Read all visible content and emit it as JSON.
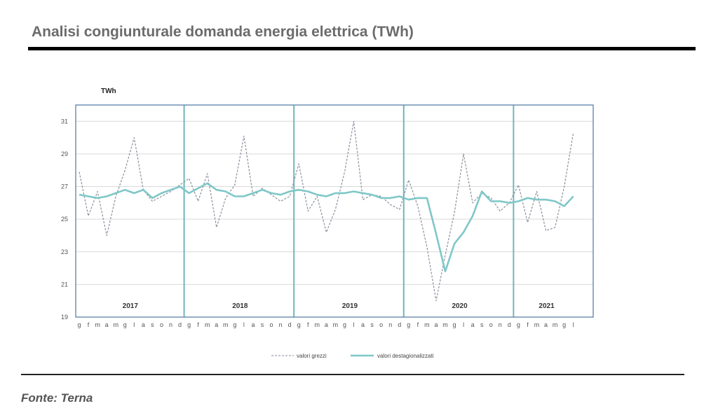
{
  "page": {
    "title": "Analisi congiunturale domanda energia elettrica (TWh)",
    "source": "Fonte: Terna"
  },
  "colors": {
    "raw": "#8a8f9c",
    "seasonal": "#7fc7c8",
    "frame": "#5b7fa6",
    "grid": "#d9d9d9",
    "divider": "#6fb7bb"
  },
  "chart_data": {
    "type": "line",
    "y_unit": "TWh",
    "ylim": [
      19,
      32
    ],
    "yticks": [
      19,
      21,
      23,
      25,
      27,
      29,
      31
    ],
    "grid": true,
    "legend_position": "bottom",
    "month_labels": [
      "g",
      "f",
      "m",
      "a",
      "m",
      "g",
      "l",
      "a",
      "s",
      "o",
      "n",
      "d",
      "g",
      "f",
      "m",
      "a",
      "m",
      "g",
      "l",
      "a",
      "s",
      "o",
      "n",
      "d",
      "g",
      "f",
      "m",
      "a",
      "m",
      "g",
      "l",
      "a",
      "s",
      "o",
      "n",
      "d",
      "g",
      "f",
      "m",
      "a",
      "m",
      "g",
      "l",
      "a",
      "s",
      "o",
      "n",
      "d",
      "g",
      "f",
      "m",
      "a",
      "m",
      "g",
      "l"
    ],
    "years": [
      {
        "label": "2017",
        "start": 0,
        "end": 11
      },
      {
        "label": "2018",
        "start": 12,
        "end": 23
      },
      {
        "label": "2019",
        "start": 24,
        "end": 35
      },
      {
        "label": "2020",
        "start": 36,
        "end": 47
      },
      {
        "label": "2021",
        "start": 48,
        "end": 54
      }
    ],
    "series": [
      {
        "name": "valori grezzi",
        "style": "dashed",
        "values": [
          27.9,
          25.2,
          26.7,
          24.0,
          26.4,
          28.0,
          30.0,
          26.8,
          26.1,
          26.4,
          26.7,
          27.1,
          27.5,
          26.1,
          27.8,
          24.5,
          26.3,
          27.1,
          30.1,
          26.4,
          26.9,
          26.5,
          26.1,
          26.4,
          28.4,
          25.5,
          26.4,
          24.2,
          25.6,
          27.9,
          31.0,
          26.2,
          26.5,
          26.4,
          25.9,
          25.6,
          27.4,
          25.8,
          23.3,
          20.0,
          22.8,
          25.4,
          29.0,
          26.0,
          26.6,
          26.3,
          25.5,
          26.0,
          27.1,
          24.8,
          26.7,
          24.3,
          24.5,
          27.0,
          30.3
        ]
      },
      {
        "name": "valori destagionalizzati",
        "style": "solid",
        "values": [
          26.5,
          26.4,
          26.3,
          26.4,
          26.6,
          26.8,
          26.6,
          26.8,
          26.3,
          26.6,
          26.8,
          27.0,
          26.6,
          26.9,
          27.2,
          26.8,
          26.7,
          26.4,
          26.4,
          26.6,
          26.8,
          26.6,
          26.5,
          26.7,
          26.8,
          26.7,
          26.5,
          26.4,
          26.6,
          26.6,
          26.7,
          26.6,
          26.5,
          26.3,
          26.3,
          26.4,
          26.2,
          26.3,
          26.3,
          24.1,
          21.8,
          23.5,
          24.2,
          25.2,
          26.7,
          26.1,
          26.1,
          26.0,
          26.1,
          26.3,
          26.2,
          26.2,
          26.1,
          25.8,
          26.4
        ]
      }
    ]
  }
}
